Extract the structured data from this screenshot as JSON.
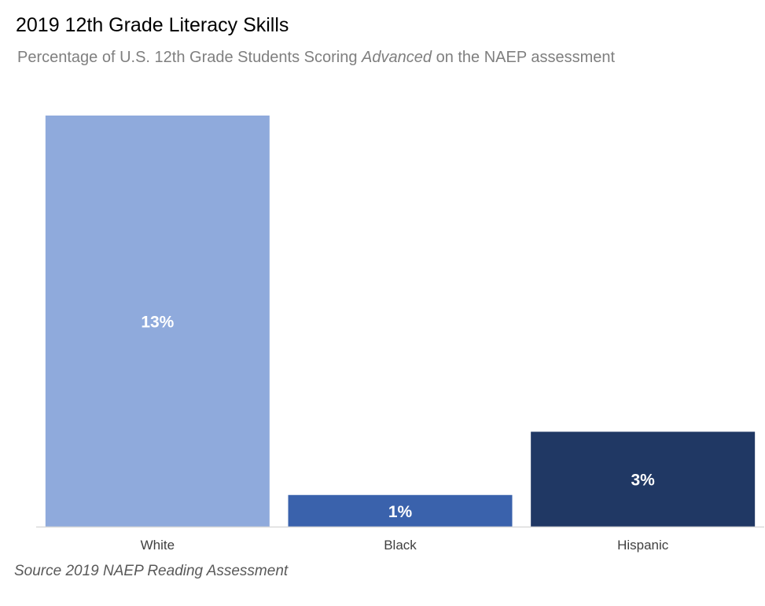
{
  "title": "2019 12th Grade Literacy Skills",
  "subtitle": {
    "before": "Percentage of U.S. 12th Grade Students Scoring ",
    "emphasis": "Advanced",
    "after": " on the NAEP assessment"
  },
  "source": "Source 2019 NAEP Reading Assessment",
  "chart_data": {
    "type": "bar",
    "categories": [
      "White",
      "Black",
      "Hispanic"
    ],
    "values": [
      13,
      1,
      3
    ],
    "data_labels": [
      "13%",
      "1%",
      "3%"
    ],
    "colors": [
      "#8faadc",
      "#3a62ac",
      "#203864"
    ],
    "label_color": "#ffffff",
    "axis_color": "#d9d9d9",
    "ylim": [
      0,
      13
    ],
    "grid": false,
    "legend": "none"
  }
}
